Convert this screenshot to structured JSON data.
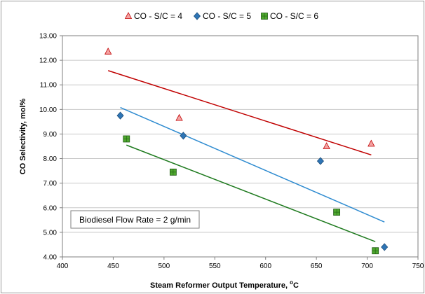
{
  "chart_data": {
    "type": "scatter",
    "xlabel": "Steam Reformer Output Temperature, ",
    "xlabel_sup": "o",
    "xlabel_unit": "C",
    "ylabel": "CO Selectivity, mol%",
    "xlim": [
      400,
      750
    ],
    "ylim": [
      4.0,
      13.0
    ],
    "xticks": [
      "400",
      "450",
      "500",
      "550",
      "600",
      "650",
      "700",
      "750"
    ],
    "yticks": [
      "4.00",
      "5.00",
      "6.00",
      "7.00",
      "8.00",
      "9.00",
      "10.00",
      "11.00",
      "12.00",
      "13.00"
    ],
    "grid": "horizontal",
    "legend_position": "top",
    "annotation": "Biodiesel Flow Rate = 2 g/min",
    "series": [
      {
        "name": "CO - S/C = 4",
        "marker": "triangle",
        "marker_color": "#f4a3a3",
        "marker_edge": "#c00000",
        "trend_color": "#c00000",
        "points": [
          [
            445,
            12.35
          ],
          [
            515,
            9.65
          ],
          [
            660,
            8.5
          ],
          [
            704,
            8.6
          ]
        ],
        "trend": [
          [
            445,
            11.58
          ],
          [
            704,
            8.15
          ]
        ]
      },
      {
        "name": "CO - S/C = 5",
        "marker": "diamond",
        "marker_color": "#2e75b6",
        "marker_edge": "#1f4e79",
        "trend_color": "#2e8bd0",
        "points": [
          [
            457,
            9.75
          ],
          [
            519,
            8.93
          ],
          [
            654,
            7.9
          ],
          [
            717,
            4.4
          ]
        ],
        "trend": [
          [
            457,
            10.08
          ],
          [
            717,
            5.42
          ]
        ]
      },
      {
        "name": "CO - S/C = 6",
        "marker": "square",
        "marker_color": "#4ea72e",
        "marker_edge": "#1e5b12",
        "trend_color": "#1e7a1e",
        "points": [
          [
            463,
            8.8
          ],
          [
            509,
            7.45
          ],
          [
            670,
            5.82
          ],
          [
            708,
            4.25
          ]
        ],
        "trend": [
          [
            463,
            8.55
          ],
          [
            708,
            4.62
          ]
        ]
      }
    ]
  }
}
